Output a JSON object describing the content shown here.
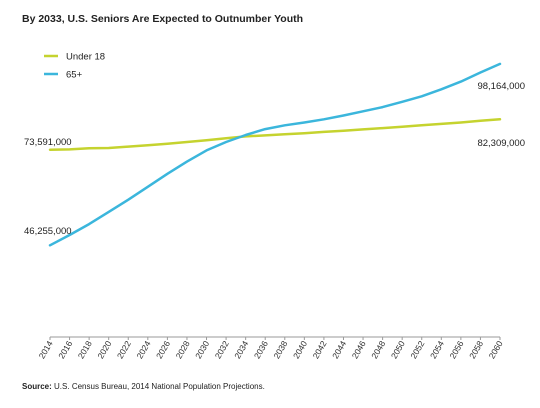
{
  "title": "By 2033, U.S. Seniors Are Expected to Outnumber Youth",
  "source": {
    "label": "Source:",
    "text": "U.S. Census Bureau, 2014 National Population Projections."
  },
  "colors": {
    "under18": "#c5d32f",
    "seniors": "#3bb6dc",
    "axis": "#9a9a9a"
  },
  "chart_data": {
    "type": "line",
    "title": "By 2033, U.S. Seniors Are Expected to Outnumber Youth",
    "xlabel": "",
    "ylabel": "",
    "xlim": [
      2014,
      2060
    ],
    "ylim": [
      20000000,
      105000000
    ],
    "grid": false,
    "legend": "top-left",
    "x_ticks": [
      2014,
      2016,
      2018,
      2020,
      2022,
      2024,
      2026,
      2028,
      2030,
      2032,
      2034,
      2036,
      2038,
      2040,
      2042,
      2044,
      2046,
      2048,
      2050,
      2052,
      2054,
      2056,
      2058,
      2060
    ],
    "x": [
      2014,
      2016,
      2018,
      2020,
      2022,
      2024,
      2026,
      2028,
      2030,
      2032,
      2034,
      2036,
      2038,
      2040,
      2042,
      2044,
      2046,
      2048,
      2050,
      2052,
      2054,
      2056,
      2058,
      2060
    ],
    "series": [
      {
        "name": "Under 18",
        "key": "under18",
        "values": [
          73591000,
          73700000,
          74000000,
          74100000,
          74500000,
          74900000,
          75300000,
          75800000,
          76300000,
          76900000,
          77400000,
          77700000,
          78000000,
          78300000,
          78700000,
          79000000,
          79400000,
          79800000,
          80200000,
          80600000,
          81000000,
          81400000,
          81900000,
          82309000
        ],
        "end_label": "82,309,000",
        "start_label": "73,591,000"
      },
      {
        "name": "65+",
        "key": "seniors",
        "values": [
          46255000,
          49200000,
          52300000,
          55800000,
          59300000,
          63000000,
          66700000,
          70200000,
          73400000,
          75800000,
          77800000,
          79500000,
          80600000,
          81400000,
          82300000,
          83400000,
          84600000,
          85800000,
          87300000,
          88900000,
          90900000,
          93100000,
          95700000,
          98164000
        ],
        "end_label": "98,164,000",
        "start_label": "46,255,000"
      }
    ]
  }
}
